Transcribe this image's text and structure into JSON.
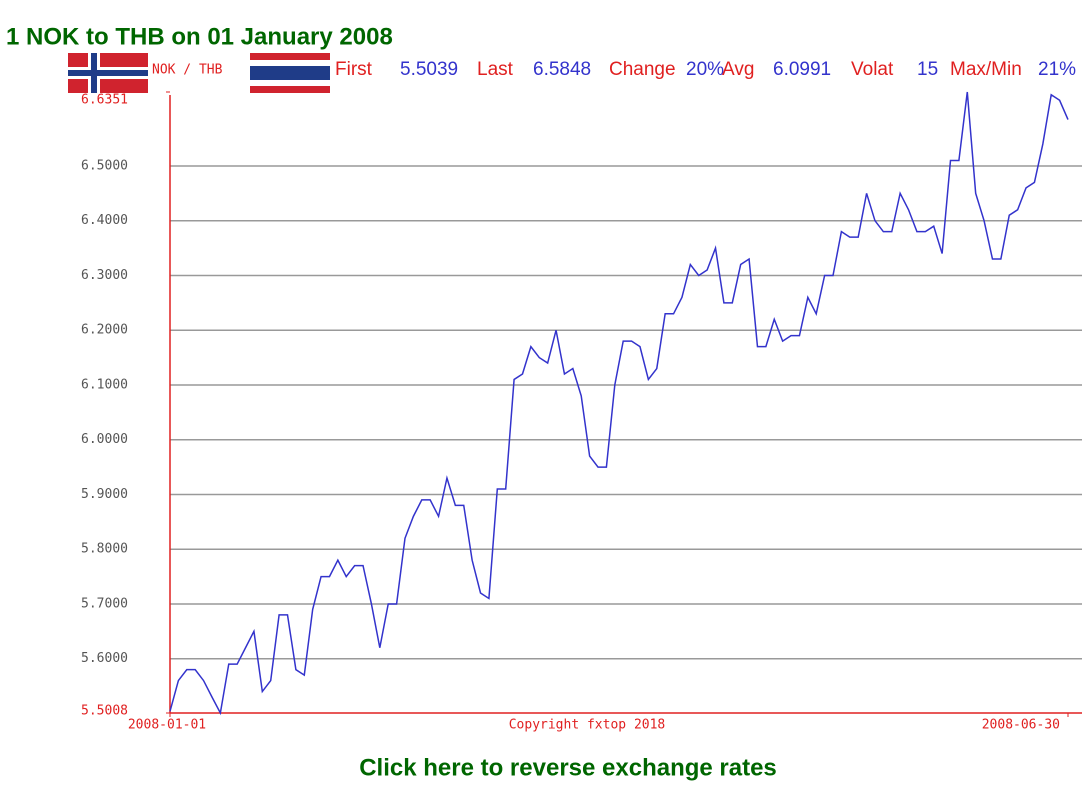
{
  "chart_data": {
    "type": "line",
    "title": "1 NOK to THB on 01 January 2008",
    "subtitle": "NOK / THB",
    "stats": [
      {
        "label": "First",
        "value": "5.5039"
      },
      {
        "label": "Last",
        "value": "6.5848"
      },
      {
        "label": "Change",
        "value": "20%"
      },
      {
        "label": "Avg",
        "value": "6.0991"
      },
      {
        "label": "Volat",
        "value": "15"
      },
      {
        "label": "Max/Min",
        "value": "21%"
      }
    ],
    "annotation": "Copyright fxtop 2018",
    "color": "#3333cc",
    "grid": true,
    "ylim": [
      5.5008,
      6.6351
    ],
    "yticks": [
      5.5008,
      {
        "value": 5.6,
        "label": "5.6000"
      },
      {
        "value": 5.7,
        "label": "5.7000"
      },
      {
        "value": 5.8,
        "label": "5.8000"
      },
      {
        "value": 5.9,
        "label": "5.9000"
      },
      {
        "value": 6.0,
        "label": "6.0000"
      },
      {
        "value": 6.1,
        "label": "6.1000"
      },
      {
        "value": 6.2,
        "label": "6.2000"
      },
      {
        "value": 6.3,
        "label": "6.3000"
      },
      {
        "value": 6.4,
        "label": "6.4000"
      },
      {
        "value": 6.5,
        "label": "6.5000"
      },
      6.6351
    ],
    "categories": [
      "2008-01-01",
      null,
      null,
      null,
      null,
      null,
      null,
      null,
      null,
      null,
      null,
      null,
      null,
      null,
      null,
      null,
      null,
      null,
      null,
      null,
      null,
      null,
      null,
      null,
      null,
      null,
      null,
      null,
      null,
      null,
      null,
      null,
      null,
      null,
      null,
      null,
      null,
      null,
      null,
      null,
      null,
      null,
      null,
      null,
      null,
      null,
      null,
      null,
      null,
      null,
      null,
      null,
      null,
      null,
      null,
      null,
      null,
      null,
      null,
      null,
      null,
      null,
      null,
      null,
      null,
      null,
      null,
      null,
      null,
      null,
      null,
      null,
      null,
      null,
      null,
      null,
      null,
      null,
      null,
      null,
      null,
      null,
      null,
      null,
      null,
      null,
      null,
      null,
      null,
      null,
      null,
      null,
      null,
      null,
      null,
      null,
      null,
      null,
      null,
      null,
      null,
      null,
      null,
      null,
      null,
      null,
      null,
      "2008-06-30"
    ],
    "values": [
      5.5039,
      5.56,
      5.58,
      5.58,
      5.56,
      5.53,
      5.5008,
      5.59,
      5.59,
      5.62,
      5.65,
      5.54,
      5.56,
      5.68,
      5.68,
      5.58,
      5.57,
      5.69,
      5.75,
      5.75,
      5.78,
      5.75,
      5.77,
      5.77,
      5.7,
      5.62,
      5.7,
      5.7,
      5.82,
      5.86,
      5.89,
      5.89,
      5.86,
      5.93,
      5.88,
      5.88,
      5.78,
      5.72,
      5.71,
      5.91,
      5.91,
      6.11,
      6.12,
      6.17,
      6.15,
      6.14,
      6.2,
      6.12,
      6.13,
      6.08,
      5.97,
      5.95,
      5.95,
      6.1,
      6.18,
      6.18,
      6.17,
      6.11,
      6.13,
      6.23,
      6.23,
      6.26,
      6.32,
      6.3,
      6.31,
      6.35,
      6.25,
      6.25,
      6.32,
      6.33,
      6.17,
      6.17,
      6.22,
      6.18,
      6.19,
      6.19,
      6.26,
      6.23,
      6.3,
      6.3,
      6.38,
      6.37,
      6.37,
      6.45,
      6.4,
      6.38,
      6.38,
      6.45,
      6.42,
      6.38,
      6.38,
      6.39,
      6.34,
      6.51,
      6.51,
      6.6351,
      6.45,
      6.4,
      6.33,
      6.33,
      6.41,
      6.42,
      6.46,
      6.47,
      6.54,
      6.63,
      6.62,
      6.5848
    ]
  },
  "link": "Click here to reverse exchange rates"
}
